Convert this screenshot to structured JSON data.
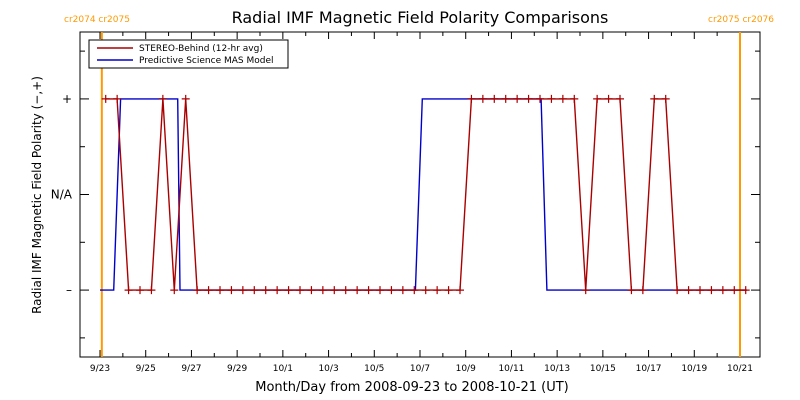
{
  "chart_data": {
    "type": "line",
    "title": "Radial IMF Magnetic Field Polarity Comparisons",
    "xlabel": "Month/Day from 2008-09-23 to 2008-10-21 (UT)",
    "ylabel": "Radial IMF Magnetic Field Polarity (−,+)",
    "xlim": [
      0,
      28
    ],
    "ylim": [
      -1.7,
      1.7
    ],
    "x_ticks": [
      {
        "x": 0,
        "label": "9/23"
      },
      {
        "x": 2,
        "label": "9/25"
      },
      {
        "x": 4,
        "label": "9/27"
      },
      {
        "x": 6,
        "label": "9/29"
      },
      {
        "x": 8,
        "label": "10/1"
      },
      {
        "x": 10,
        "label": "10/3"
      },
      {
        "x": 12,
        "label": "10/5"
      },
      {
        "x": 14,
        "label": "10/7"
      },
      {
        "x": 16,
        "label": "10/9"
      },
      {
        "x": 18,
        "label": "10/11"
      },
      {
        "x": 20,
        "label": "10/13"
      },
      {
        "x": 22,
        "label": "10/15"
      },
      {
        "x": 24,
        "label": "10/17"
      },
      {
        "x": 26,
        "label": "10/19"
      },
      {
        "x": 28,
        "label": "10/21"
      }
    ],
    "y_ticks": [
      {
        "y": 1,
        "label": "+"
      },
      {
        "y": 0,
        "label": "N/A"
      },
      {
        "y": -1,
        "label": "–"
      }
    ],
    "carrington_markers": [
      {
        "x": 0.08,
        "label": "cr2074 cr2075",
        "color": "#ff9900"
      },
      {
        "x": 28.0,
        "label": "cr2075 cr2076",
        "color": "#ff9900"
      }
    ],
    "legend": {
      "position": "top-left"
    },
    "series": [
      {
        "name": "STEREO-Behind (12-hr avg)",
        "color": "#aa0000",
        "marker": "plus",
        "points": [
          [
            0.25,
            1
          ],
          [
            0.75,
            1
          ],
          [
            1.25,
            -1
          ],
          [
            1.75,
            -1
          ],
          [
            2.25,
            -1
          ],
          [
            2.75,
            1
          ],
          [
            3.25,
            -1
          ],
          [
            3.75,
            1
          ],
          [
            4.25,
            -1
          ],
          [
            4.75,
            -1
          ],
          [
            5.25,
            -1
          ],
          [
            5.75,
            -1
          ],
          [
            6.25,
            -1
          ],
          [
            6.75,
            -1
          ],
          [
            7.25,
            -1
          ],
          [
            7.75,
            -1
          ],
          [
            8.25,
            -1
          ],
          [
            8.75,
            -1
          ],
          [
            9.25,
            -1
          ],
          [
            9.75,
            -1
          ],
          [
            10.25,
            -1
          ],
          [
            10.75,
            -1
          ],
          [
            11.25,
            -1
          ],
          [
            11.75,
            -1
          ],
          [
            12.25,
            -1
          ],
          [
            12.75,
            -1
          ],
          [
            13.25,
            -1
          ],
          [
            13.75,
            -1
          ],
          [
            14.25,
            -1
          ],
          [
            14.75,
            -1
          ],
          [
            15.25,
            -1
          ],
          [
            15.75,
            -1
          ],
          [
            16.25,
            1
          ],
          [
            16.75,
            1
          ],
          [
            17.25,
            1
          ],
          [
            17.75,
            1
          ],
          [
            18.25,
            1
          ],
          [
            18.75,
            1
          ],
          [
            19.25,
            1
          ],
          [
            19.75,
            1
          ],
          [
            20.25,
            1
          ],
          [
            20.75,
            1
          ],
          [
            21.25,
            -1
          ],
          [
            21.75,
            1
          ],
          [
            22.25,
            1
          ],
          [
            22.75,
            1
          ],
          [
            23.25,
            -1
          ],
          [
            23.75,
            -1
          ],
          [
            24.25,
            1
          ],
          [
            24.75,
            1
          ],
          [
            25.25,
            -1
          ],
          [
            25.75,
            -1
          ],
          [
            26.25,
            -1
          ],
          [
            26.75,
            -1
          ],
          [
            27.25,
            -1
          ],
          [
            27.75,
            -1
          ],
          [
            28.25,
            -1
          ]
        ]
      },
      {
        "name": "Predictive Science MAS Model",
        "color": "#0000cc",
        "points": [
          [
            0,
            -1
          ],
          [
            0.6,
            -1
          ],
          [
            0.9,
            1
          ],
          [
            3.4,
            1
          ],
          [
            3.5,
            -1
          ],
          [
            13.8,
            -1
          ],
          [
            14.1,
            1
          ],
          [
            19.3,
            1
          ],
          [
            19.55,
            -1
          ],
          [
            28.3,
            -1
          ]
        ]
      }
    ]
  }
}
